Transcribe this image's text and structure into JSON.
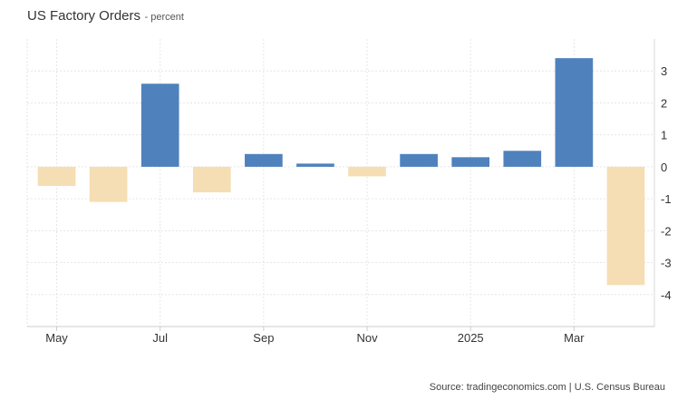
{
  "header": {
    "title": "US Factory Orders",
    "subtitle": "- percent"
  },
  "chart_data": {
    "type": "bar",
    "categories": [
      "2024-05",
      "2024-06",
      "2024-07",
      "2024-08",
      "2024-09",
      "2024-10",
      "2024-11",
      "2024-12",
      "2025-01",
      "2025-02",
      "2025-03",
      "2025-04"
    ],
    "values": [
      -0.6,
      -1.1,
      2.6,
      -0.8,
      0.4,
      0.1,
      -0.3,
      0.4,
      0.3,
      0.5,
      3.4,
      -3.7
    ],
    "x_tick_labels": [
      {
        "label": "May",
        "index": 0
      },
      {
        "label": "Jul",
        "index": 2
      },
      {
        "label": "Sep",
        "index": 4
      },
      {
        "label": "Nov",
        "index": 6
      },
      {
        "label": "2025",
        "index": 8
      },
      {
        "label": "Mar",
        "index": 10
      }
    ],
    "y_ticks": [
      3,
      2,
      1,
      0,
      -1,
      -2,
      -3,
      -4
    ],
    "ylim": [
      -5,
      4
    ],
    "grid": true,
    "colors": {
      "positive": "#4f81bd",
      "negative": "#f5deb3",
      "grid": "#e6e6e6"
    }
  },
  "footer": {
    "source": "Source: tradingeconomics.com | U.S. Census Bureau"
  }
}
